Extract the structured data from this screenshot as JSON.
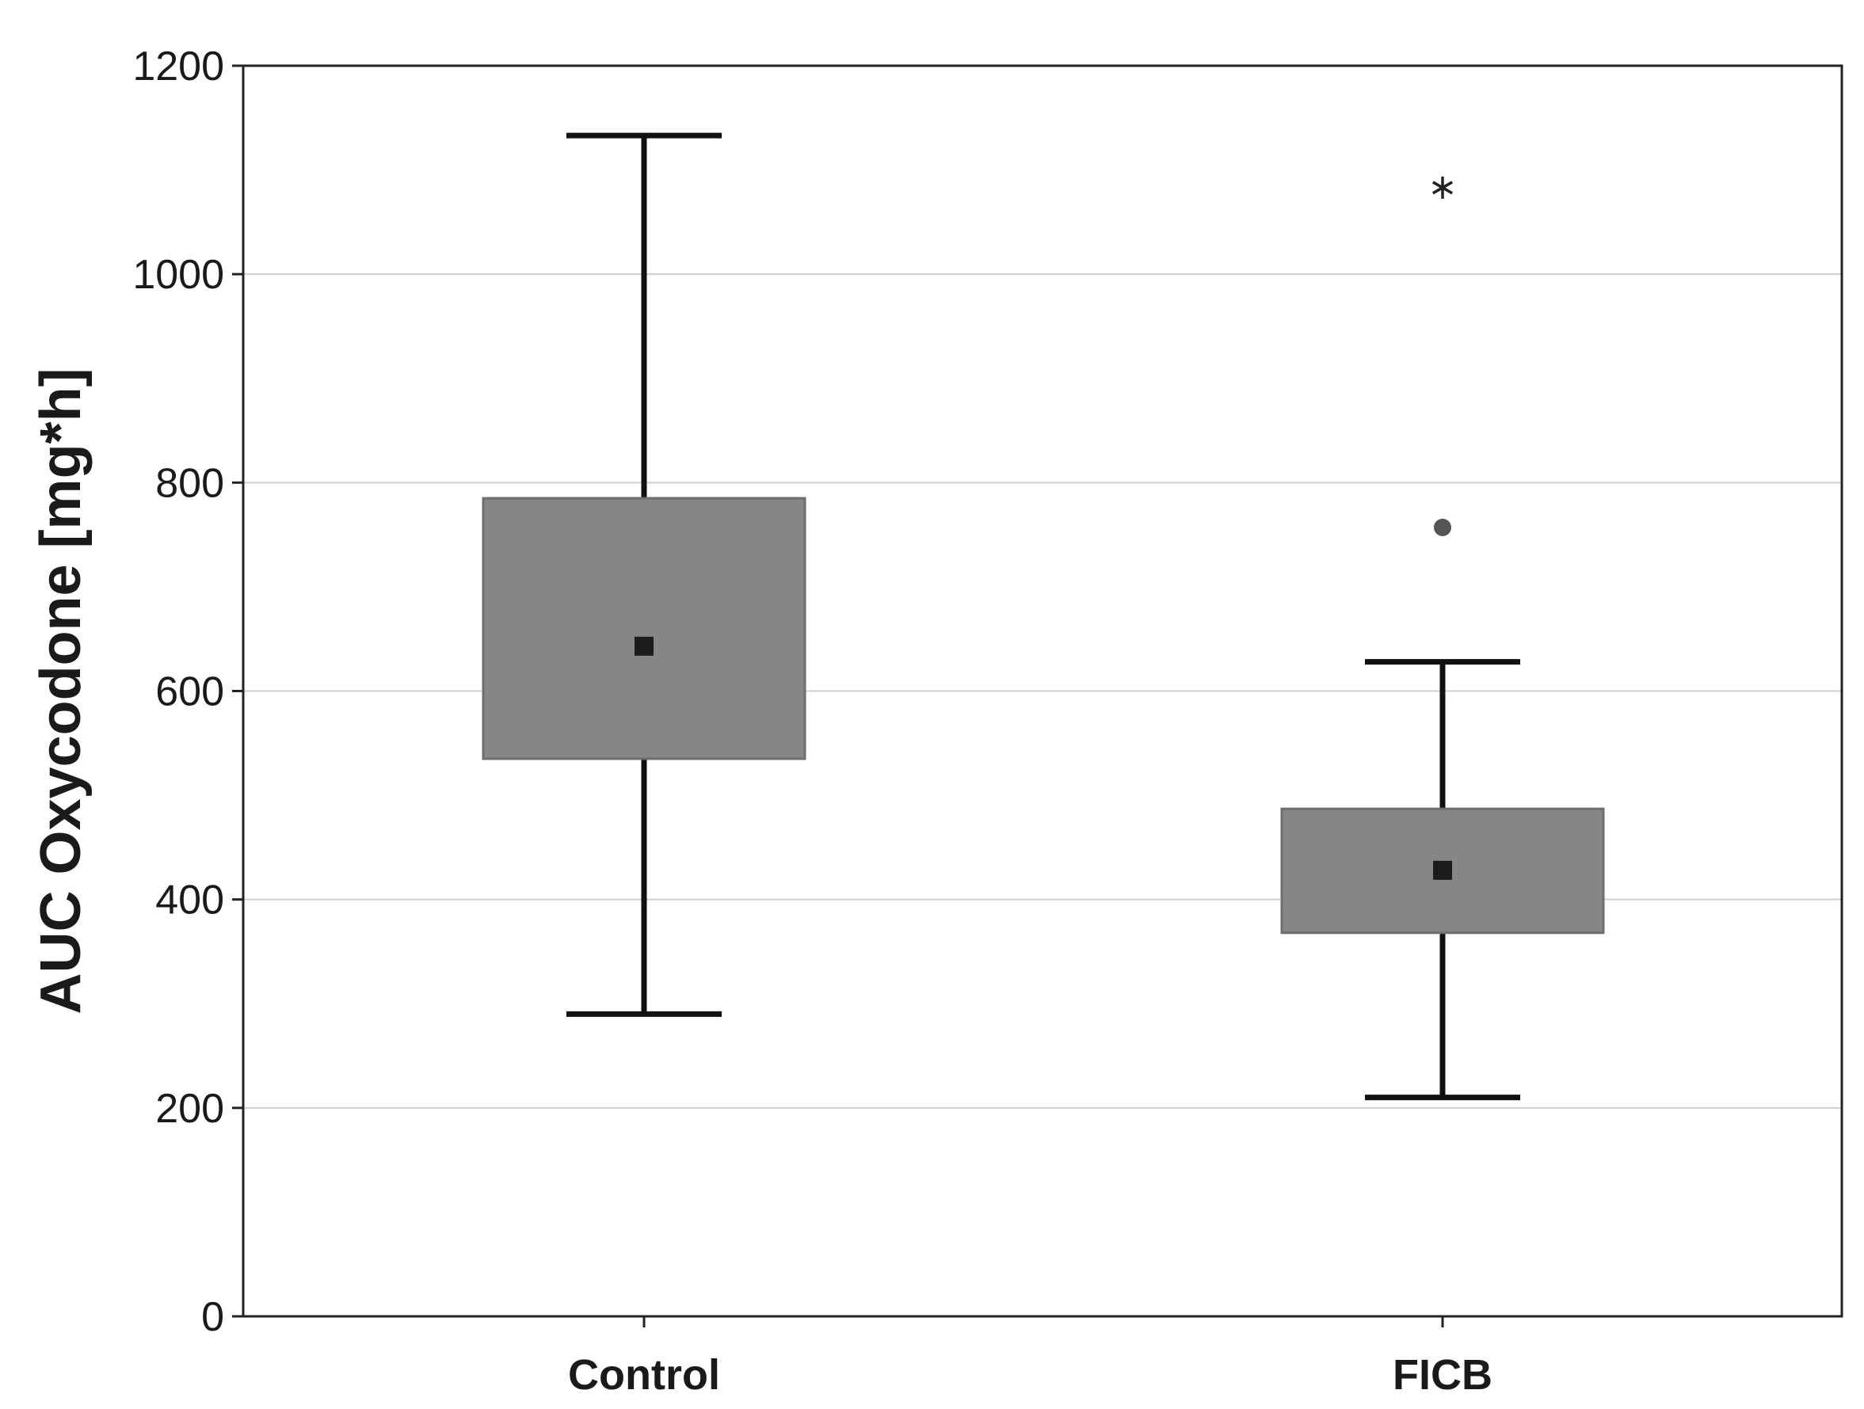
{
  "chart_data": {
    "type": "box",
    "title": "",
    "xlabel": "",
    "ylabel": "AUC Oxycodone [mg*h]",
    "ylim": [
      0,
      1200
    ],
    "yticks": [
      0,
      200,
      400,
      600,
      800,
      1000,
      1200
    ],
    "grid": "horizontal",
    "categories": [
      "Control",
      "FICB"
    ],
    "series": [
      {
        "category": "Control",
        "whisker_low": 290,
        "box_low": 535,
        "center": 643,
        "box_high": 785,
        "whisker_high": 1133,
        "outliers": [],
        "extremes": []
      },
      {
        "category": "FICB",
        "whisker_low": 210,
        "box_low": 368,
        "center": 428,
        "box_high": 487,
        "whisker_high": 628,
        "outliers": [
          757
        ],
        "extremes": [
          1083
        ]
      }
    ],
    "colors": {
      "box_fill": "#868686",
      "box_stroke": "#6e6e6e",
      "whisker": "#111111",
      "center_marker": "#1c1c1c",
      "outlier_marker": "#555555",
      "extreme_marker": "#222222",
      "grid": "#cfcfcf",
      "frame": "#222222"
    },
    "marker_shapes": {
      "center": "square",
      "outlier": "circle",
      "extreme": "asterisk"
    }
  }
}
